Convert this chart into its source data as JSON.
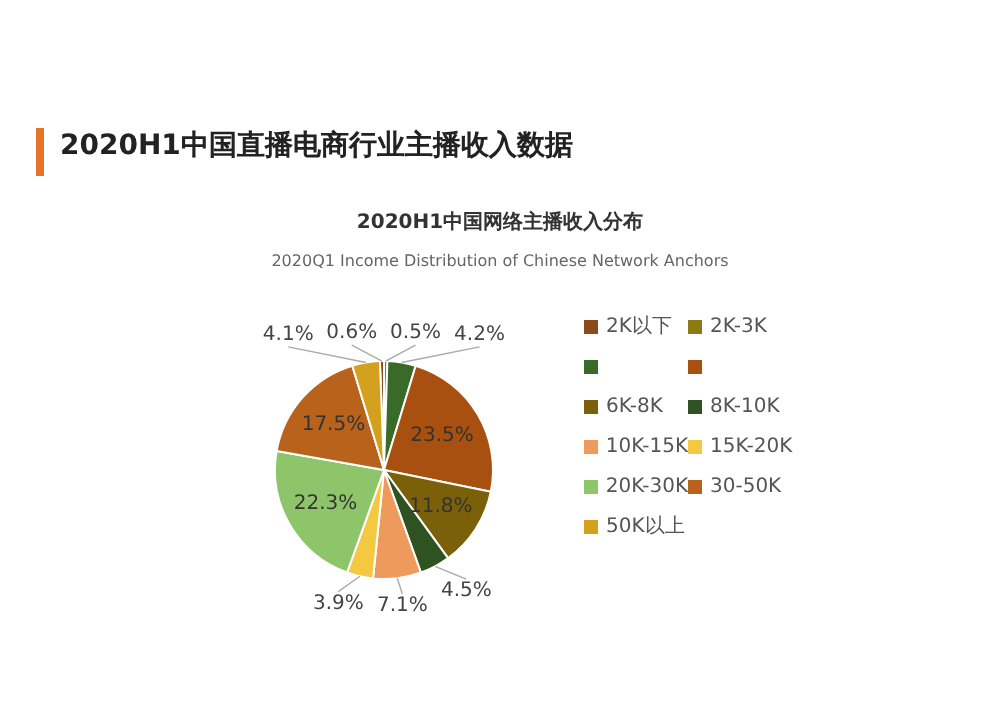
{
  "chart_data": {
    "type": "pie",
    "title": "2020H1中国网络主播收入分布",
    "subtitle": "2020Q1 Income Distribution of Chinese Network Anchors",
    "annotations": [
      "2020H1中国直播电商行业主播收入数据"
    ],
    "categories": [
      "2K以下",
      "2K-3K",
      null,
      null,
      "6K-8K",
      "8K-10K",
      "10K-15K",
      "15K-20K",
      "20K-30K",
      "30-50K",
      "50K以上"
    ],
    "values": [
      0.6,
      0.5,
      4.2,
      23.5,
      11.8,
      4.5,
      7.1,
      3.9,
      22.3,
      17.5,
      4.1
    ],
    "colors": [
      "#8a4a1a",
      "#8c7a12",
      "#3a6a28",
      "#a8500f",
      "#7a6008",
      "#2e5222",
      "#ee9a5c",
      "#f5c842",
      "#8ec46a",
      "#b9621c",
      "#d4a11e"
    ],
    "value_labels": [
      "0.6%",
      "0.5%",
      "4.2%",
      "23.5%",
      "11.8%",
      "4.5%",
      "7.1%",
      "3.9%",
      "22.3%",
      "17.5%",
      "4.1%"
    ],
    "legend": "right"
  }
}
